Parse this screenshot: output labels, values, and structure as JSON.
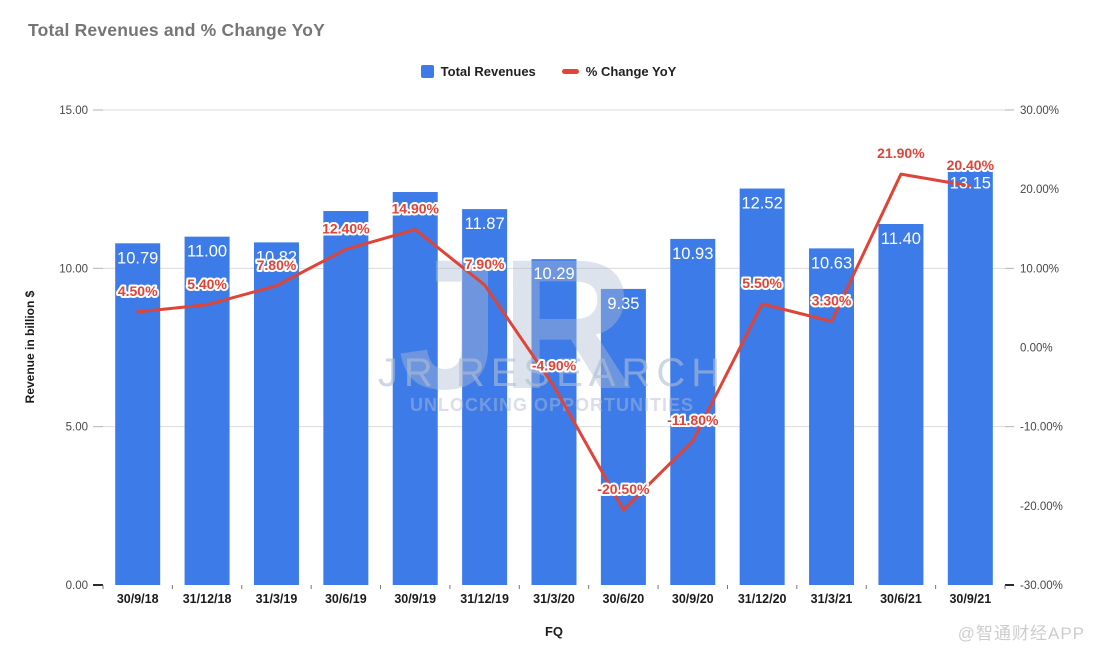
{
  "header": {
    "title": "Total Revenues and % Change YoY"
  },
  "legend": {
    "items": [
      {
        "label": "Total Revenues",
        "marker": "square"
      },
      {
        "label": "% Change YoY",
        "marker": "dash"
      }
    ]
  },
  "colors": {
    "bar": "#3D7BE8",
    "line": "#DF4438",
    "grid": "#DBDBDB",
    "baseline": "#2b2b2b",
    "tick_text": "#474747",
    "category_text": "#1a1a1a",
    "bar_label_text": "#FFFFFF",
    "title_text": "#757575",
    "watermark_center": "#AFBDD4",
    "watermark_corner": "#cdcdcd"
  },
  "chart_data": {
    "type": "combo (bar + line)",
    "title": "Total Revenues and % Change YoY",
    "categories": [
      "30/9/18",
      "31/12/18",
      "31/3/19",
      "30/6/19",
      "30/9/19",
      "31/12/19",
      "31/3/20",
      "30/6/20",
      "30/9/20",
      "31/12/20",
      "31/3/21",
      "30/6/21",
      "30/9/21"
    ],
    "series": [
      {
        "name": "Total Revenues",
        "type": "bar",
        "axis": "left",
        "values": [
          10.79,
          11.0,
          10.82,
          11.81,
          12.41,
          11.87,
          10.29,
          9.35,
          10.93,
          12.52,
          10.63,
          11.4,
          13.15
        ],
        "value_labels": [
          "10.79",
          "11.00",
          "10.82",
          "",
          "",
          "11.87",
          "10.29",
          "9.35",
          "10.93",
          "12.52",
          "10.63",
          "11.40",
          "13.15"
        ],
        "note": "labels for 30/6/19 and 30/9/19 are hidden behind the line labels"
      },
      {
        "name": "% Change YoY",
        "type": "line",
        "axis": "right",
        "values": [
          4.5,
          5.4,
          7.8,
          12.4,
          14.9,
          7.9,
          -4.9,
          -20.5,
          -11.8,
          5.5,
          3.3,
          21.9,
          20.4
        ],
        "value_labels": [
          "4.50%",
          "5.40%",
          "7.80%",
          "12.40%",
          "14.90%",
          "7.90%",
          "-4.90%",
          "-20.50%",
          "-11.80%",
          "5.50%",
          "3.30%",
          "21.90%",
          "20.40%"
        ]
      }
    ],
    "left_axis": {
      "title": "Revenue in billion $",
      "tick_labels": [
        "15.00",
        "10.00",
        "5.00",
        "0.00"
      ],
      "tick_values": [
        15,
        10,
        5,
        0
      ],
      "range": [
        0,
        15
      ],
      "grid": true
    },
    "right_axis": {
      "tick_labels": [
        "30.00%",
        "20.00%",
        "10.00%",
        "0.00%",
        "-10.00%",
        "-20.00%",
        "-30.00%"
      ],
      "tick_values": [
        30,
        20,
        10,
        0,
        -10,
        -20,
        -30
      ],
      "dash_values": [
        30,
        10,
        -10,
        -30
      ],
      "range": [
        -30,
        30
      ],
      "grid": false
    },
    "x_axis": {
      "title": "FQ"
    },
    "legend_position": "top-center"
  },
  "watermarks": {
    "monogram": "JR",
    "name": "JR RESEARCH",
    "tagline": "UNLOCKING OPPORTUNITIES",
    "corner": "@智通财经APP"
  }
}
